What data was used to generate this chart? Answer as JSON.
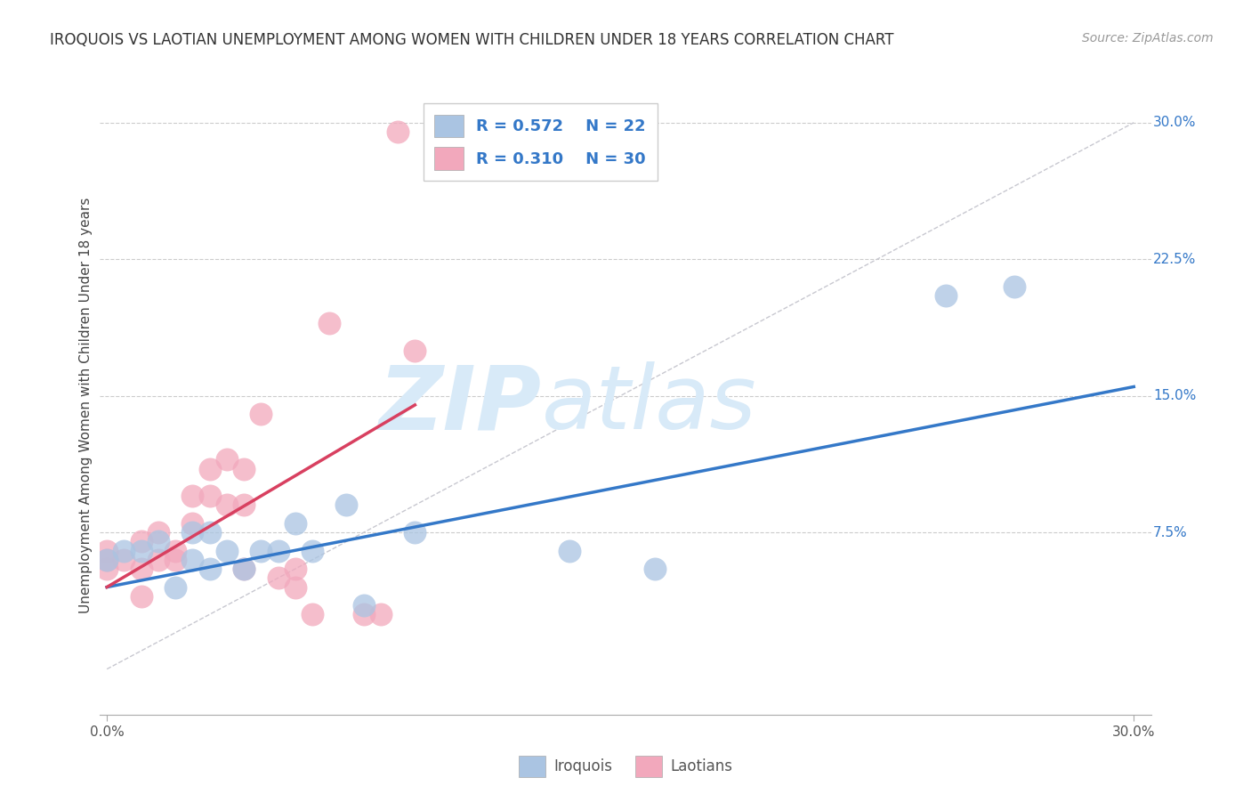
{
  "title": "IROQUOIS VS LAOTIAN UNEMPLOYMENT AMONG WOMEN WITH CHILDREN UNDER 18 YEARS CORRELATION CHART",
  "source": "Source: ZipAtlas.com",
  "ylabel": "Unemployment Among Women with Children Under 18 years",
  "iroquois_R": "0.572",
  "iroquois_N": "22",
  "laotian_R": "0.310",
  "laotian_N": "30",
  "iroquois_color": "#aac4e2",
  "laotian_color": "#f2a8bc",
  "iroquois_line_color": "#3478c8",
  "laotian_line_color": "#d84060",
  "diagonal_color": "#c8c8d0",
  "watermark_color": "#d8eaf8",
  "xlim": [
    -0.002,
    0.305
  ],
  "ylim": [
    -0.025,
    0.315
  ],
  "yticks": [
    0.075,
    0.15,
    0.225,
    0.3
  ],
  "ytick_labels": [
    "7.5%",
    "15.0%",
    "22.5%",
    "30.0%"
  ],
  "iroquois_x": [
    0.0,
    0.005,
    0.01,
    0.015,
    0.02,
    0.025,
    0.025,
    0.03,
    0.03,
    0.035,
    0.04,
    0.045,
    0.05,
    0.055,
    0.06,
    0.07,
    0.075,
    0.09,
    0.135,
    0.16,
    0.245,
    0.265
  ],
  "iroquois_y": [
    0.06,
    0.065,
    0.065,
    0.07,
    0.045,
    0.06,
    0.075,
    0.055,
    0.075,
    0.065,
    0.055,
    0.065,
    0.065,
    0.08,
    0.065,
    0.09,
    0.035,
    0.075,
    0.065,
    0.055,
    0.205,
    0.21
  ],
  "laotian_x": [
    0.0,
    0.0,
    0.0,
    0.005,
    0.01,
    0.01,
    0.01,
    0.015,
    0.015,
    0.02,
    0.02,
    0.025,
    0.025,
    0.03,
    0.03,
    0.035,
    0.035,
    0.04,
    0.04,
    0.04,
    0.045,
    0.05,
    0.055,
    0.055,
    0.06,
    0.065,
    0.075,
    0.08,
    0.085,
    0.09
  ],
  "laotian_y": [
    0.055,
    0.06,
    0.065,
    0.06,
    0.04,
    0.055,
    0.07,
    0.06,
    0.075,
    0.06,
    0.065,
    0.08,
    0.095,
    0.095,
    0.11,
    0.09,
    0.115,
    0.09,
    0.055,
    0.11,
    0.14,
    0.05,
    0.045,
    0.055,
    0.03,
    0.19,
    0.03,
    0.03,
    0.295,
    0.175
  ],
  "iroquois_trend_x": [
    0.0,
    0.3
  ],
  "iroquois_trend_y": [
    0.045,
    0.155
  ],
  "laotian_trend_x": [
    0.0,
    0.09
  ],
  "laotian_trend_y": [
    0.045,
    0.145
  ]
}
